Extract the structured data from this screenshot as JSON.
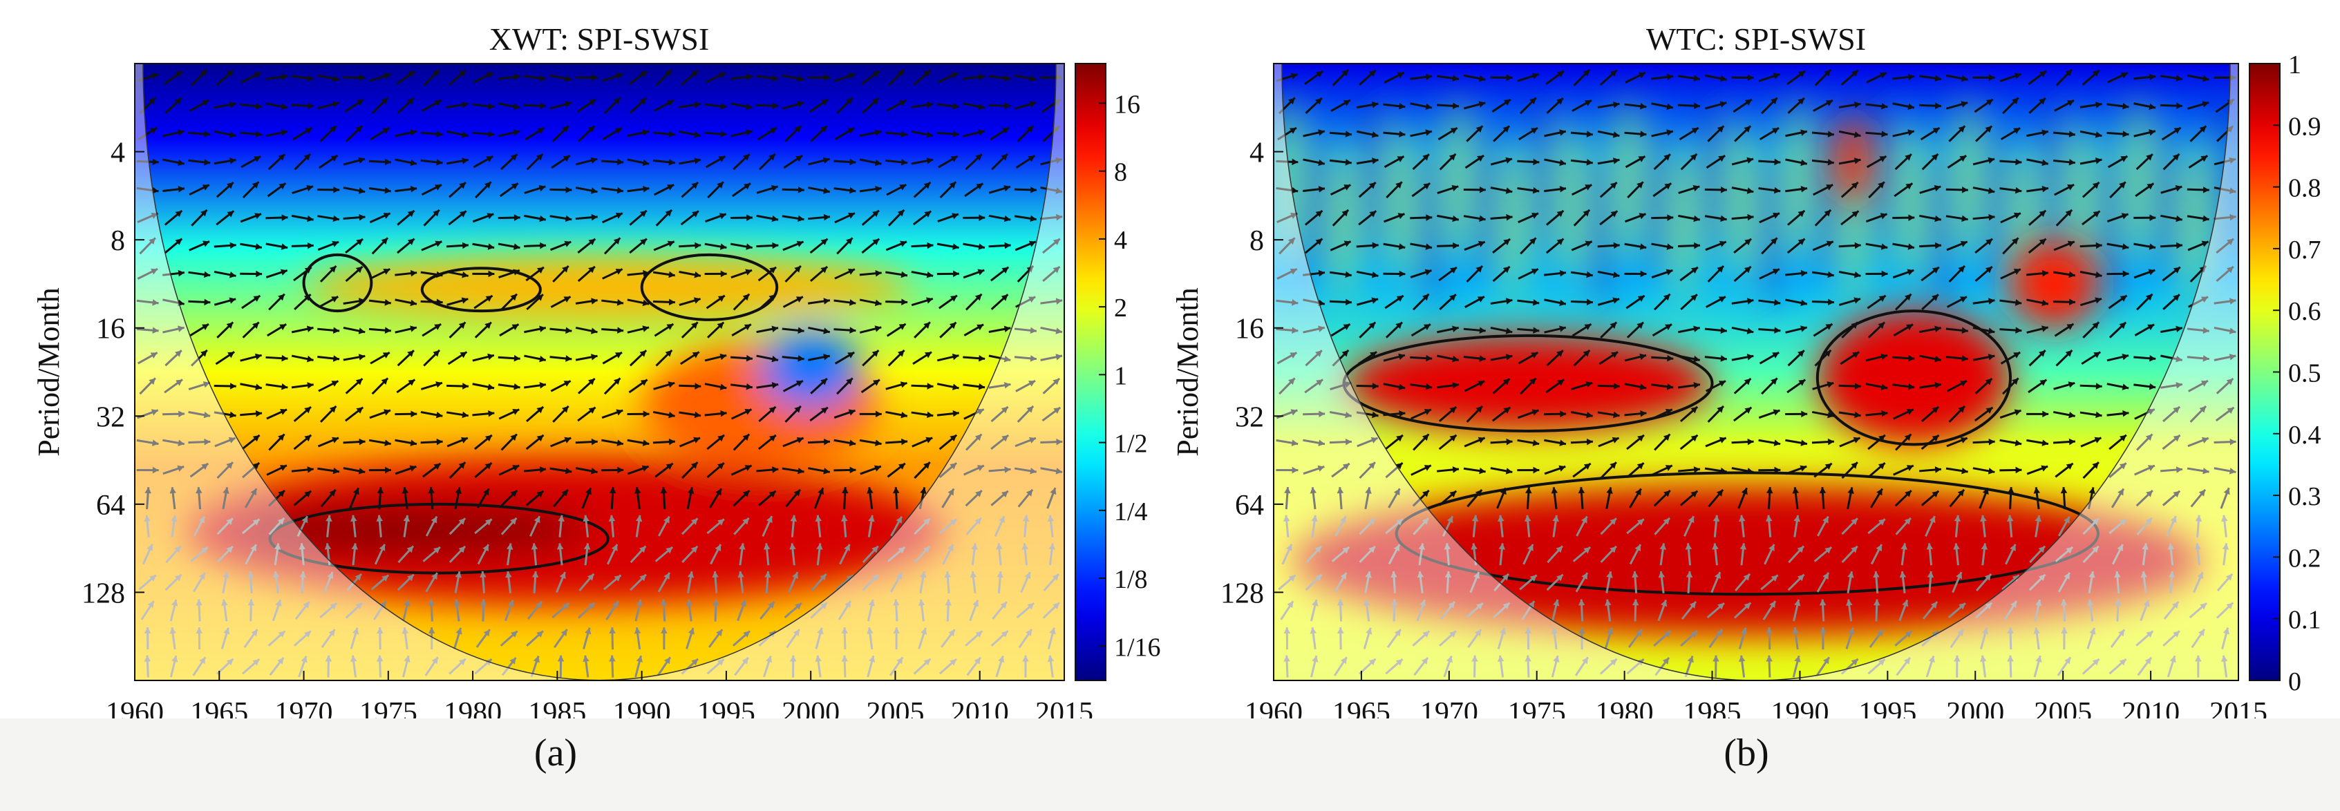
{
  "chart_data": [
    {
      "type": "heatmap",
      "title": "XWT: SPI-SWSI",
      "ylabel": "Period/Month",
      "xlabel": "",
      "xlim": [
        1960,
        2015
      ],
      "ylim": [
        2,
        256
      ],
      "yscale": "log2",
      "xticks": [
        1960,
        1965,
        1970,
        1975,
        1980,
        1985,
        1990,
        1995,
        2000,
        2005,
        2010,
        2015
      ],
      "yticks": [
        4,
        8,
        16,
        32,
        64,
        128
      ],
      "colorbar": {
        "scale": "log2",
        "range": [
          0.044,
          24
        ],
        "tick_values": [
          0.0625,
          0.125,
          0.25,
          0.5,
          1,
          2,
          4,
          8,
          16
        ],
        "tick_labels": [
          "1/16",
          "1/8",
          "1/4",
          "1/2",
          "1",
          "2",
          "4",
          "8",
          "16"
        ]
      },
      "caption": "(a)",
      "regions": [
        {
          "label": "high power band",
          "x": [
            1963,
            2008
          ],
          "period": [
            45,
            140
          ],
          "level": 14
        },
        {
          "label": "core of strongest power",
          "x": [
            1966,
            1987
          ],
          "period": [
            64,
            96
          ],
          "level": 22
        },
        {
          "label": "power zone",
          "x": [
            1990,
            2004
          ],
          "period": [
            18,
            48
          ],
          "level": 6
        },
        {
          "label": "low power pocket",
          "x": [
            1997,
            2003
          ],
          "period": [
            16,
            30
          ],
          "level": 0.2
        },
        {
          "label": "band",
          "x": [
            1970,
            2006
          ],
          "period": [
            9,
            15
          ],
          "level": 3.5
        }
      ],
      "significant_contours": [
        {
          "x": [
            1968,
            1988
          ],
          "period": [
            64,
            110
          ]
        },
        {
          "x": [
            1970,
            1974
          ],
          "period": [
            9,
            14
          ]
        },
        {
          "x": [
            1977,
            1984
          ],
          "period": [
            10,
            14
          ]
        },
        {
          "x": [
            1990,
            1998
          ],
          "period": [
            9,
            15
          ]
        }
      ]
    },
    {
      "type": "heatmap",
      "title": "WTC: SPI-SWSI",
      "ylabel": "Period/Month",
      "xlabel": "",
      "xlim": [
        1960,
        2015
      ],
      "ylim": [
        2,
        256
      ],
      "yscale": "log2",
      "xticks": [
        1960,
        1965,
        1970,
        1975,
        1980,
        1985,
        1990,
        1995,
        2000,
        2005,
        2010,
        2015
      ],
      "yticks": [
        4,
        8,
        16,
        32,
        64,
        128
      ],
      "colorbar": {
        "scale": "linear",
        "range": [
          0,
          1
        ],
        "tick_values": [
          0,
          0.1,
          0.2,
          0.3,
          0.4,
          0.5,
          0.6,
          0.7,
          0.8,
          0.9,
          1
        ],
        "tick_labels": [
          "0",
          "0.1",
          "0.2",
          "0.3",
          "0.4",
          "0.5",
          "0.6",
          "0.7",
          "0.8",
          "0.9",
          "1"
        ]
      },
      "caption": "(b)",
      "regions": [
        {
          "label": "coherent band",
          "x": [
            1961,
            2013
          ],
          "period": [
            55,
            180
          ],
          "level": 0.92
        },
        {
          "label": "coherent zone",
          "x": [
            1964,
            1985
          ],
          "period": [
            17,
            36
          ],
          "level": 0.9
        },
        {
          "label": "coherent zone",
          "x": [
            1991,
            2002
          ],
          "period": [
            14,
            40
          ],
          "level": 0.9
        },
        {
          "label": "coherent zone",
          "x": [
            2002,
            2007
          ],
          "period": [
            8,
            16
          ],
          "level": 0.85
        },
        {
          "label": "coherent zone",
          "x": [
            1992,
            1994
          ],
          "period": [
            3,
            6
          ],
          "level": 0.85
        }
      ],
      "significant_contours": [
        {
          "x": [
            1964,
            1985
          ],
          "period": [
            17,
            36
          ]
        },
        {
          "x": [
            1967,
            2007
          ],
          "period": [
            50,
            130
          ]
        },
        {
          "x": [
            1991,
            2002
          ],
          "period": [
            14,
            40
          ]
        }
      ]
    }
  ]
}
